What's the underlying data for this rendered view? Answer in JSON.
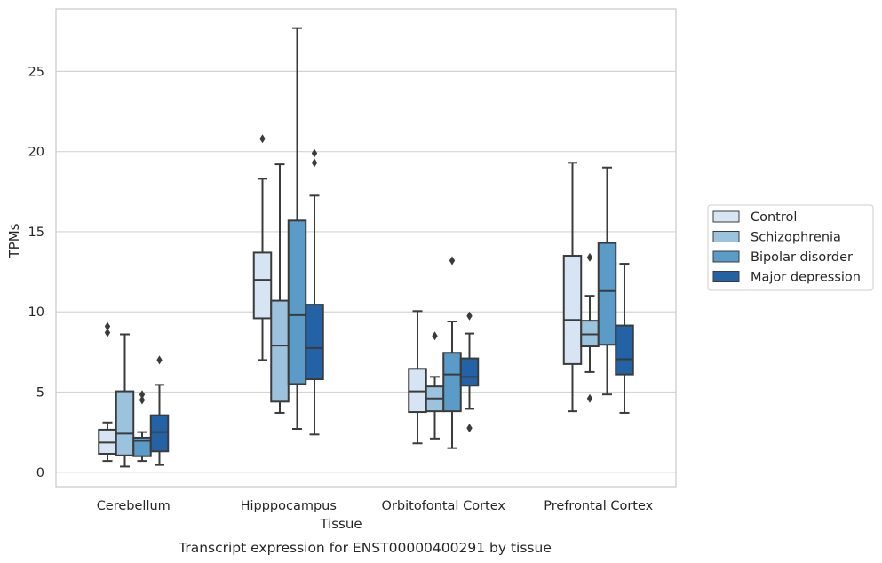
{
  "chart_data": {
    "type": "box",
    "caption": "Transcript expression for ENST00000400291 by tissue",
    "xlabel": "Tissue",
    "ylabel": "TPMs",
    "ylim": [
      -0.9,
      28.9
    ],
    "yticks": [
      0,
      5,
      10,
      15,
      20,
      25
    ],
    "grid": true,
    "legend_position": "right",
    "categories": [
      "Cerebellum",
      "Hipppocampus",
      "Orbitofontal Cortex",
      "Prefrontal Cortex"
    ],
    "series": [
      {
        "name": "Control",
        "color": "#d6e4f3",
        "boxes": [
          {
            "whislo": 0.7,
            "q1": 1.15,
            "med": 1.85,
            "q3": 2.65,
            "whishi": 3.1,
            "fliers": [
              8.7,
              9.1
            ]
          },
          {
            "whislo": 7.0,
            "q1": 9.6,
            "med": 12.0,
            "q3": 13.7,
            "whishi": 18.3,
            "fliers": [
              20.8
            ]
          },
          {
            "whislo": 1.8,
            "q1": 3.75,
            "med": 5.05,
            "q3": 6.45,
            "whishi": 10.05,
            "fliers": []
          },
          {
            "whislo": 3.8,
            "q1": 6.75,
            "med": 9.5,
            "q3": 13.5,
            "whishi": 19.3,
            "fliers": []
          }
        ]
      },
      {
        "name": "Schizophrenia",
        "color": "#9cc3dd",
        "boxes": [
          {
            "whislo": 0.35,
            "q1": 1.05,
            "med": 2.4,
            "q3": 5.05,
            "whishi": 8.6,
            "fliers": []
          },
          {
            "whislo": 3.7,
            "q1": 4.4,
            "med": 7.9,
            "q3": 10.7,
            "whishi": 19.2,
            "fliers": []
          },
          {
            "whislo": 2.1,
            "q1": 3.8,
            "med": 4.6,
            "q3": 5.35,
            "whishi": 5.95,
            "fliers": [
              8.5
            ]
          },
          {
            "whislo": 6.25,
            "q1": 7.85,
            "med": 8.6,
            "q3": 9.45,
            "whishi": 11.0,
            "fliers": [
              4.6,
              13.4
            ]
          }
        ]
      },
      {
        "name": "Bipolar disorder",
        "color": "#5a9bc8",
        "boxes": [
          {
            "whislo": 0.7,
            "q1": 1.0,
            "med": 1.95,
            "q3": 2.15,
            "whishi": 2.5,
            "fliers": [
              4.5,
              4.85
            ]
          },
          {
            "whislo": 2.7,
            "q1": 5.5,
            "med": 9.8,
            "q3": 15.7,
            "whishi": 27.7,
            "fliers": []
          },
          {
            "whislo": 1.5,
            "q1": 3.8,
            "med": 6.1,
            "q3": 7.45,
            "whishi": 9.4,
            "fliers": [
              13.2
            ]
          },
          {
            "whislo": 4.85,
            "q1": 7.95,
            "med": 11.3,
            "q3": 14.3,
            "whishi": 19.0,
            "fliers": []
          }
        ]
      },
      {
        "name": "Major depression",
        "color": "#2363a5",
        "boxes": [
          {
            "whislo": 0.45,
            "q1": 1.3,
            "med": 2.5,
            "q3": 3.55,
            "whishi": 5.45,
            "fliers": [
              7.0
            ]
          },
          {
            "whislo": 2.35,
            "q1": 5.8,
            "med": 7.75,
            "q3": 10.45,
            "whishi": 17.25,
            "fliers": [
              19.3,
              19.9
            ]
          },
          {
            "whislo": 3.95,
            "q1": 5.4,
            "med": 5.95,
            "q3": 7.1,
            "whishi": 8.65,
            "fliers": [
              2.75,
              9.75
            ]
          },
          {
            "whislo": 3.7,
            "q1": 6.1,
            "med": 7.05,
            "q3": 9.15,
            "whishi": 13.0,
            "fliers": []
          }
        ]
      }
    ]
  }
}
